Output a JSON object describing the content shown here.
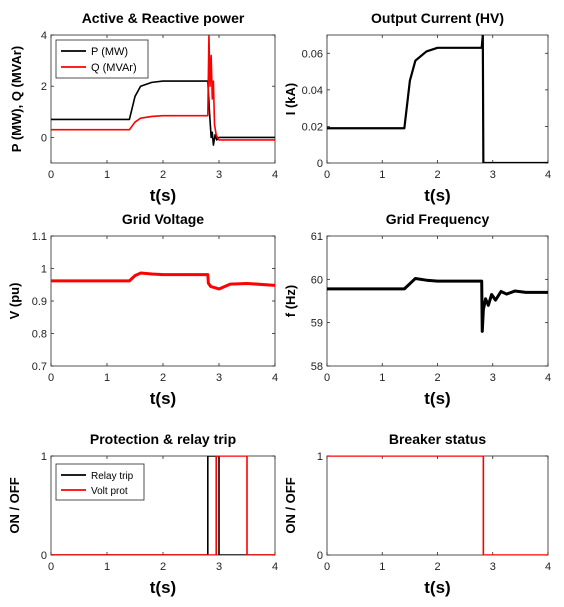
{
  "chart_data": [
    {
      "type": "line",
      "title": "Active & Reactive power",
      "xlabel": "t(s)",
      "ylabel": "P (MW), Q (MVAr)",
      "xlim": [
        0,
        4
      ],
      "ylim": [
        -1,
        4
      ],
      "xticks": [
        "0",
        "1",
        "2",
        "3",
        "4"
      ],
      "yticks": [
        "0",
        "2",
        "4"
      ],
      "ytick_values": [
        0,
        2,
        4
      ],
      "legend": "top-left",
      "series": [
        {
          "name": "P (MW)",
          "color": "#000000",
          "points": [
            [
              0,
              0.7
            ],
            [
              1.4,
              0.7
            ],
            [
              1.5,
              1.6
            ],
            [
              1.6,
              2.0
            ],
            [
              1.8,
              2.15
            ],
            [
              2.0,
              2.2
            ],
            [
              2.8,
              2.2
            ],
            [
              2.83,
              1.0
            ],
            [
              2.86,
              0.0
            ],
            [
              2.88,
              0.2
            ],
            [
              2.9,
              -0.3
            ],
            [
              2.93,
              0.1
            ],
            [
              2.96,
              -0.1
            ],
            [
              3.0,
              0.0
            ],
            [
              4.0,
              0.0
            ]
          ]
        },
        {
          "name": "Q (MVAr)",
          "color": "#ff0000",
          "points": [
            [
              0,
              0.3
            ],
            [
              1.4,
              0.3
            ],
            [
              1.5,
              0.6
            ],
            [
              1.6,
              0.75
            ],
            [
              1.8,
              0.82
            ],
            [
              2.0,
              0.85
            ],
            [
              2.8,
              0.85
            ],
            [
              2.82,
              4.0
            ],
            [
              2.84,
              2.0
            ],
            [
              2.86,
              3.2
            ],
            [
              2.88,
              1.5
            ],
            [
              2.9,
              2.2
            ],
            [
              2.92,
              0.5
            ],
            [
              2.95,
              0.1
            ],
            [
              3.0,
              -0.1
            ],
            [
              4.0,
              -0.1
            ]
          ]
        }
      ]
    },
    {
      "type": "line",
      "title": "Output Current (HV)",
      "xlabel": "t(s)",
      "ylabel": "I (kA)",
      "xlim": [
        0,
        4
      ],
      "ylim": [
        0,
        0.07
      ],
      "xticks": [
        "0",
        "1",
        "2",
        "3",
        "4"
      ],
      "yticks": [
        "0",
        "0.02",
        "0.04",
        "0.06"
      ],
      "ytick_values": [
        0,
        0.02,
        0.04,
        0.06
      ],
      "series": [
        {
          "color": "#000000",
          "points": [
            [
              0,
              0.019
            ],
            [
              1.4,
              0.019
            ],
            [
              1.5,
              0.045
            ],
            [
              1.6,
              0.056
            ],
            [
              1.8,
              0.061
            ],
            [
              2.0,
              0.063
            ],
            [
              2.8,
              0.063
            ],
            [
              2.82,
              0.07
            ],
            [
              2.83,
              0.0
            ],
            [
              4.0,
              0.0
            ]
          ]
        }
      ]
    },
    {
      "type": "line",
      "title": "Grid Voltage",
      "xlabel": "t(s)",
      "ylabel": "V (pu)",
      "xlim": [
        0,
        4
      ],
      "ylim": [
        0.7,
        1.1
      ],
      "xticks": [
        "0",
        "1",
        "2",
        "3",
        "4"
      ],
      "yticks": [
        "0.7",
        "0.8",
        "0.9",
        "1",
        "1.1"
      ],
      "ytick_values": [
        0.7,
        0.8,
        0.9,
        1.0,
        1.1
      ],
      "series": [
        {
          "color": "#ff0000",
          "points": [
            [
              0,
              0.962
            ],
            [
              1.4,
              0.962
            ],
            [
              1.5,
              0.978
            ],
            [
              1.6,
              0.986
            ],
            [
              1.8,
              0.983
            ],
            [
              2.0,
              0.981
            ],
            [
              2.8,
              0.981
            ],
            [
              2.81,
              0.955
            ],
            [
              2.85,
              0.945
            ],
            [
              3.0,
              0.937
            ],
            [
              3.2,
              0.952
            ],
            [
              3.5,
              0.954
            ],
            [
              4.0,
              0.948
            ]
          ]
        }
      ]
    },
    {
      "type": "line",
      "title": "Grid Frequency",
      "xlabel": "t(s)",
      "ylabel": "f (Hz)",
      "xlim": [
        0,
        4
      ],
      "ylim": [
        58,
        61
      ],
      "xticks": [
        "0",
        "1",
        "2",
        "3",
        "4"
      ],
      "yticks": [
        "58",
        "59",
        "60",
        "61"
      ],
      "ytick_values": [
        58,
        59,
        60,
        61
      ],
      "series": [
        {
          "color": "#000000",
          "points": [
            [
              0,
              59.78
            ],
            [
              1.4,
              59.78
            ],
            [
              1.5,
              59.9
            ],
            [
              1.6,
              60.02
            ],
            [
              1.8,
              59.98
            ],
            [
              2.0,
              59.96
            ],
            [
              2.8,
              59.96
            ],
            [
              2.81,
              58.8
            ],
            [
              2.83,
              59.3
            ],
            [
              2.87,
              59.55
            ],
            [
              2.92,
              59.4
            ],
            [
              2.98,
              59.65
            ],
            [
              3.05,
              59.52
            ],
            [
              3.15,
              59.72
            ],
            [
              3.25,
              59.66
            ],
            [
              3.4,
              59.73
            ],
            [
              3.6,
              59.7
            ],
            [
              4.0,
              59.7
            ]
          ]
        }
      ]
    },
    {
      "type": "line",
      "title": "Protection & relay trip",
      "xlabel": "t(s)",
      "ylabel": "ON / OFF",
      "xlim": [
        0,
        4
      ],
      "ylim": [
        0,
        1
      ],
      "xticks": [
        "0",
        "1",
        "2",
        "3",
        "4"
      ],
      "yticks": [
        "0",
        "1"
      ],
      "ytick_values": [
        0,
        1
      ],
      "legend": "top-left",
      "series": [
        {
          "name": "Relay trip",
          "color": "#000000",
          "points": [
            [
              0,
              0
            ],
            [
              2.8,
              0
            ],
            [
              2.8,
              1
            ],
            [
              3.0,
              1
            ],
            [
              3.0,
              0
            ],
            [
              4.0,
              0
            ]
          ]
        },
        {
          "name": "Volt prot",
          "color": "#ff0000",
          "points": [
            [
              0,
              0
            ],
            [
              2.95,
              0
            ],
            [
              2.95,
              1
            ],
            [
              3.5,
              1
            ],
            [
              3.5,
              0
            ],
            [
              4.0,
              0
            ]
          ]
        }
      ]
    },
    {
      "type": "line",
      "title": "Breaker status",
      "xlabel": "t(s)",
      "ylabel": "ON / OFF",
      "xlim": [
        0,
        4
      ],
      "ylim": [
        0,
        1
      ],
      "xticks": [
        "0",
        "1",
        "2",
        "3",
        "4"
      ],
      "yticks": [
        "0",
        "1"
      ],
      "ytick_values": [
        0,
        1
      ],
      "series": [
        {
          "color": "#ff0000",
          "points": [
            [
              0,
              1
            ],
            [
              2.83,
              1
            ],
            [
              2.83,
              0
            ],
            [
              4.0,
              0
            ]
          ]
        }
      ]
    }
  ]
}
